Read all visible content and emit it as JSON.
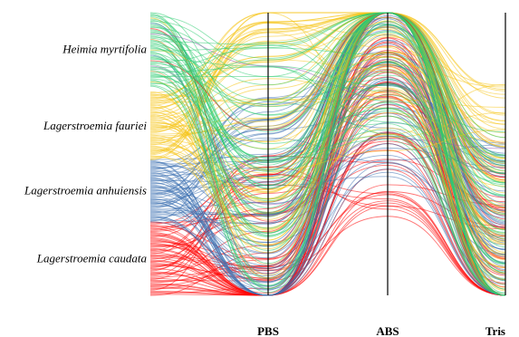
{
  "chart_data": {
    "type": "parallel-sets",
    "title": "",
    "categories": [
      "Heimia myrtifolia",
      "Lagerstroemia fauriei",
      "Lagerstroemia anhuiensis",
      "Lagerstroemia caudata"
    ],
    "axes": [
      "PBS",
      "ABS",
      "Tris"
    ],
    "category_colors": {
      "Heimia myrtifolia": "#2ecc71",
      "Lagerstroemia fauriei": "#f5c518",
      "Lagerstroemia anhuiensis": "#3a6fb0",
      "Lagerstroemia caudata": "#ff0000"
    },
    "series": [
      {
        "name": "Heimia myrtifolia",
        "band": [
          0.0,
          0.26
        ],
        "profile": [
          0.05,
          0.55,
          0.05,
          0.85
        ]
      },
      {
        "name": "Lagerstroemia fauriei",
        "band": [
          0.28,
          0.52
        ],
        "profile": [
          0.1,
          0.4,
          0.0,
          0.7
        ]
      },
      {
        "name": "Lagerstroemia anhuiensis",
        "band": [
          0.52,
          0.74
        ],
        "profile": [
          0.25,
          0.75,
          0.15,
          0.9
        ]
      },
      {
        "name": "Lagerstroemia caudata",
        "band": [
          0.74,
          1.0
        ],
        "profile": [
          0.35,
          0.95,
          0.3,
          1.0
        ]
      }
    ],
    "grid": false,
    "legend": "none"
  }
}
